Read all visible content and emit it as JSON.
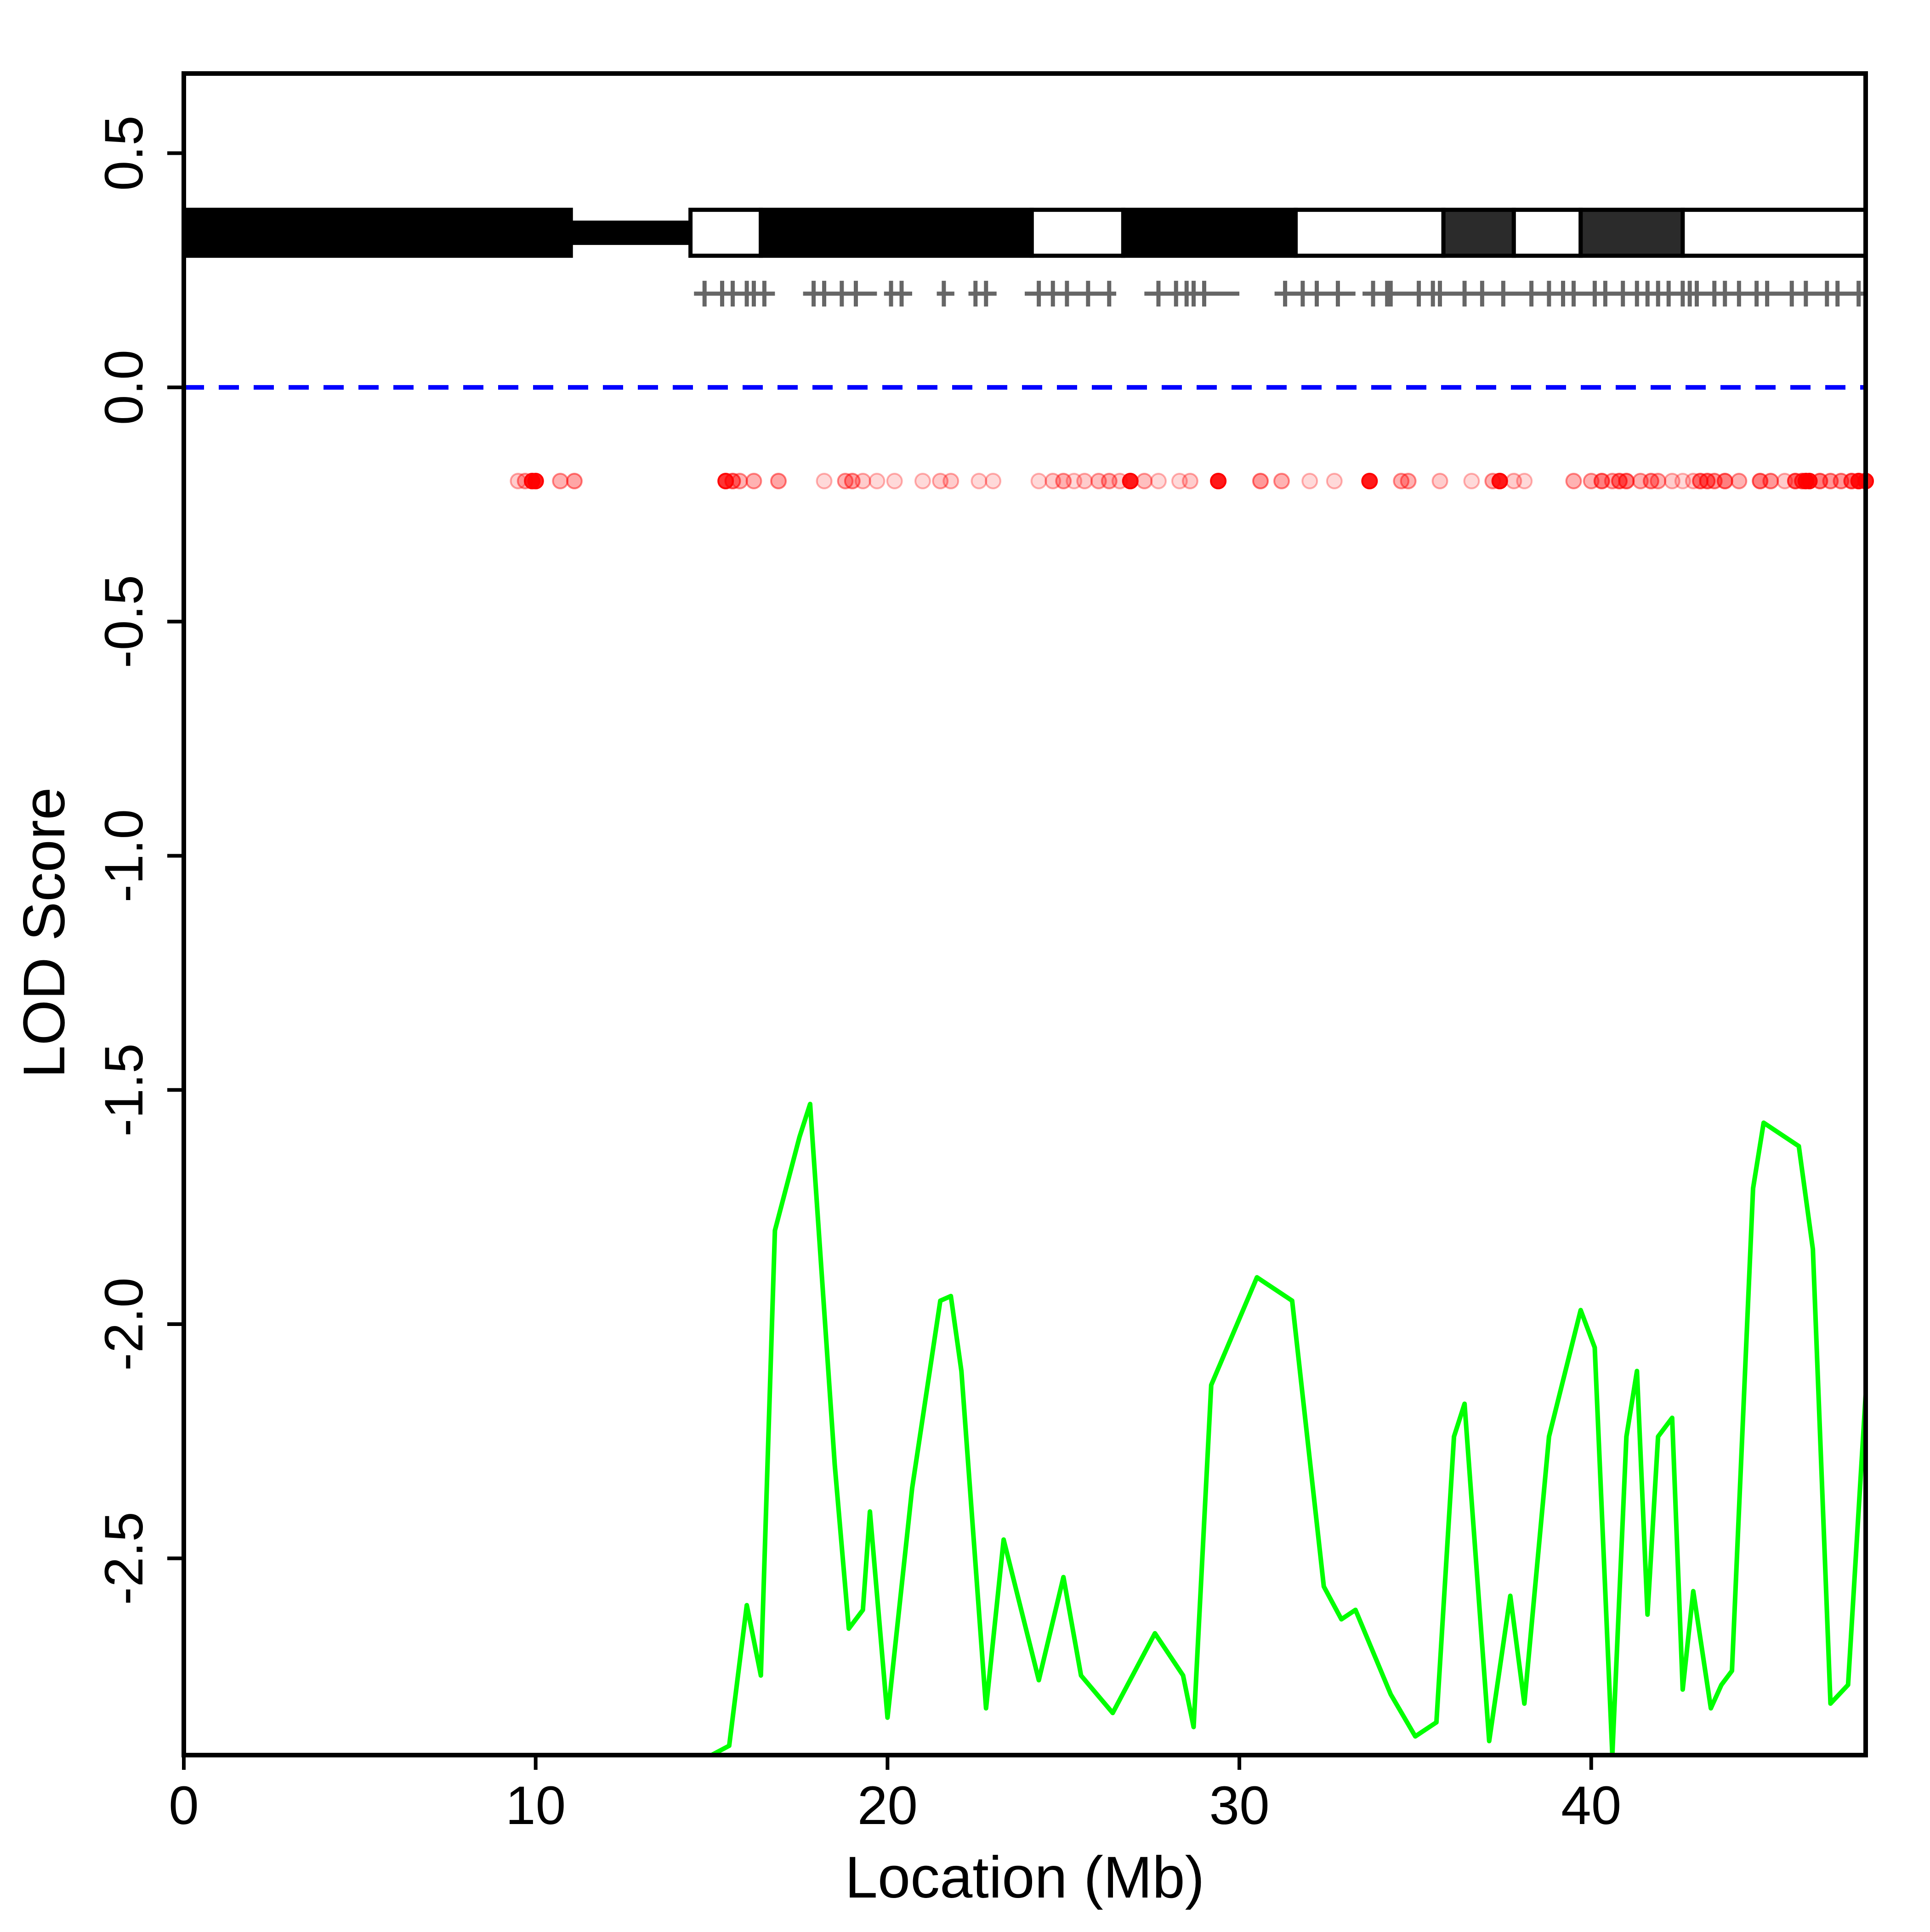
{
  "chart_data": {
    "type": "line",
    "title": "",
    "xlabel": "Location (Mb)",
    "ylabel": "LOD Score",
    "xlim": [
      0,
      47.8
    ],
    "ylim": [
      -2.92,
      0.67
    ],
    "x_ticks": [
      0,
      10,
      20,
      30,
      40
    ],
    "x_tick_labels": [
      "0",
      "10",
      "20",
      "30",
      "40"
    ],
    "y_ticks": [
      0.5,
      0.0,
      -0.5,
      -1.0,
      -1.5,
      -2.0,
      -2.5
    ],
    "y_tick_labels": [
      "0.5",
      "0.0",
      "-0.5",
      "-1.0",
      "-1.5",
      "-2.0",
      "-2.5"
    ],
    "grid": false,
    "threshold": {
      "y": 0.0,
      "color": "#0000ff",
      "style": "dashed"
    },
    "colors": {
      "lod_line": "#00ff00",
      "threshold": "#0000ff",
      "snp_points": "#ff0000",
      "markers": "#666666",
      "chrom_dark": "#000000",
      "chrom_gray": "#2b2b2b",
      "chrom_light": "#ffffff"
    },
    "chromosome_ideogram": {
      "y": 0.33,
      "bands": [
        {
          "start": 0.0,
          "end": 11.0,
          "shade": "dark",
          "part": "arm"
        },
        {
          "start": 11.0,
          "end": 14.4,
          "shade": "dark",
          "part": "centromere"
        },
        {
          "start": 14.4,
          "end": 16.4,
          "shade": "light",
          "part": "arm"
        },
        {
          "start": 16.4,
          "end": 24.1,
          "shade": "dark",
          "part": "arm"
        },
        {
          "start": 24.1,
          "end": 26.7,
          "shade": "light",
          "part": "arm"
        },
        {
          "start": 26.7,
          "end": 31.6,
          "shade": "dark",
          "part": "arm"
        },
        {
          "start": 31.6,
          "end": 35.8,
          "shade": "light",
          "part": "arm"
        },
        {
          "start": 35.8,
          "end": 37.8,
          "shade": "gray",
          "part": "arm"
        },
        {
          "start": 37.8,
          "end": 39.7,
          "shade": "light",
          "part": "arm"
        },
        {
          "start": 39.7,
          "end": 42.6,
          "shade": "gray",
          "part": "arm"
        },
        {
          "start": 42.6,
          "end": 47.8,
          "shade": "light",
          "part": "arm"
        }
      ]
    },
    "markers": {
      "y": 0.2,
      "segments": [
        [
          14.5,
          16.8
        ],
        [
          17.6,
          19.7
        ],
        [
          19.9,
          20.7
        ],
        [
          21.4,
          21.9
        ],
        [
          22.3,
          23.1
        ],
        [
          23.9,
          26.5
        ],
        [
          27.3,
          30.0
        ],
        [
          31.0,
          33.3
        ],
        [
          33.5,
          47.8
        ]
      ],
      "positions": [
        14.8,
        15.3,
        15.6,
        16.0,
        16.2,
        16.5,
        17.9,
        18.2,
        18.7,
        19.1,
        20.1,
        20.4,
        21.6,
        22.5,
        22.8,
        24.3,
        24.7,
        25.1,
        25.7,
        26.3,
        27.7,
        28.2,
        28.5,
        28.7,
        29.0,
        31.3,
        31.8,
        32.2,
        32.8,
        33.8,
        34.2,
        34.3,
        35.1,
        35.5,
        35.7,
        36.4,
        36.9,
        37.5,
        38.3,
        38.8,
        39.2,
        39.5,
        40.1,
        40.4,
        40.9,
        41.3,
        41.6,
        41.9,
        42.2,
        42.6,
        42.8,
        43.0,
        43.5,
        43.8,
        44.2,
        44.7,
        45.0,
        45.7,
        46.1,
        46.7,
        47.0,
        47.6
      ],
      "marker_shape": "plus"
    },
    "snp_points": {
      "y": -0.2,
      "points": [
        {
          "x": 9.5,
          "a": 0.2
        },
        {
          "x": 9.7,
          "a": 0.3
        },
        {
          "x": 9.9,
          "a": 0.9
        },
        {
          "x": 10.0,
          "a": 0.9
        },
        {
          "x": 10.7,
          "a": 0.3
        },
        {
          "x": 11.1,
          "a": 0.35
        },
        {
          "x": 15.4,
          "a": 0.8
        },
        {
          "x": 15.6,
          "a": 0.5
        },
        {
          "x": 15.8,
          "a": 0.3
        },
        {
          "x": 16.2,
          "a": 0.3
        },
        {
          "x": 16.9,
          "a": 0.35
        },
        {
          "x": 18.2,
          "a": 0.15
        },
        {
          "x": 18.8,
          "a": 0.3
        },
        {
          "x": 19.0,
          "a": 0.35
        },
        {
          "x": 19.3,
          "a": 0.2
        },
        {
          "x": 19.7,
          "a": 0.15
        },
        {
          "x": 20.2,
          "a": 0.15
        },
        {
          "x": 21.0,
          "a": 0.15
        },
        {
          "x": 21.5,
          "a": 0.2
        },
        {
          "x": 21.8,
          "a": 0.2
        },
        {
          "x": 22.6,
          "a": 0.15
        },
        {
          "x": 23.0,
          "a": 0.15
        },
        {
          "x": 24.3,
          "a": 0.15
        },
        {
          "x": 24.7,
          "a": 0.2
        },
        {
          "x": 25.0,
          "a": 0.3
        },
        {
          "x": 25.3,
          "a": 0.15
        },
        {
          "x": 25.6,
          "a": 0.2
        },
        {
          "x": 26.0,
          "a": 0.25
        },
        {
          "x": 26.3,
          "a": 0.3
        },
        {
          "x": 26.6,
          "a": 0.2
        },
        {
          "x": 26.9,
          "a": 0.9
        },
        {
          "x": 27.3,
          "a": 0.25
        },
        {
          "x": 27.7,
          "a": 0.15
        },
        {
          "x": 28.3,
          "a": 0.15
        },
        {
          "x": 28.6,
          "a": 0.2
        },
        {
          "x": 29.4,
          "a": 0.9
        },
        {
          "x": 30.6,
          "a": 0.4
        },
        {
          "x": 31.2,
          "a": 0.3
        },
        {
          "x": 32.0,
          "a": 0.15
        },
        {
          "x": 32.7,
          "a": 0.15
        },
        {
          "x": 33.7,
          "a": 0.9
        },
        {
          "x": 34.6,
          "a": 0.3
        },
        {
          "x": 34.8,
          "a": 0.3
        },
        {
          "x": 35.7,
          "a": 0.2
        },
        {
          "x": 36.6,
          "a": 0.15
        },
        {
          "x": 37.2,
          "a": 0.3
        },
        {
          "x": 37.4,
          "a": 0.9
        },
        {
          "x": 37.8,
          "a": 0.2
        },
        {
          "x": 38.1,
          "a": 0.15
        },
        {
          "x": 39.5,
          "a": 0.3
        },
        {
          "x": 40.0,
          "a": 0.3
        },
        {
          "x": 40.3,
          "a": 0.5
        },
        {
          "x": 40.6,
          "a": 0.3
        },
        {
          "x": 40.8,
          "a": 0.5
        },
        {
          "x": 41.0,
          "a": 0.5
        },
        {
          "x": 41.4,
          "a": 0.3
        },
        {
          "x": 41.7,
          "a": 0.4
        },
        {
          "x": 41.9,
          "a": 0.3
        },
        {
          "x": 42.3,
          "a": 0.2
        },
        {
          "x": 42.6,
          "a": 0.15
        },
        {
          "x": 42.9,
          "a": 0.2
        },
        {
          "x": 43.1,
          "a": 0.5
        },
        {
          "x": 43.3,
          "a": 0.5
        },
        {
          "x": 43.5,
          "a": 0.4
        },
        {
          "x": 43.8,
          "a": 0.5
        },
        {
          "x": 44.2,
          "a": 0.3
        },
        {
          "x": 44.8,
          "a": 0.5
        },
        {
          "x": 45.1,
          "a": 0.4
        },
        {
          "x": 45.5,
          "a": 0.2
        },
        {
          "x": 45.8,
          "a": 0.6
        },
        {
          "x": 46.0,
          "a": 0.6
        },
        {
          "x": 46.1,
          "a": 0.9
        },
        {
          "x": 46.2,
          "a": 0.9
        },
        {
          "x": 46.5,
          "a": 0.5
        },
        {
          "x": 46.8,
          "a": 0.4
        },
        {
          "x": 47.1,
          "a": 0.4
        },
        {
          "x": 47.4,
          "a": 0.6
        },
        {
          "x": 47.6,
          "a": 0.9
        },
        {
          "x": 47.8,
          "a": 0.9
        }
      ]
    },
    "series": [
      {
        "x": [
          0.0,
          15.0,
          15.5,
          16.0,
          16.4,
          16.8,
          17.5,
          17.8,
          18.5,
          18.9,
          19.3,
          19.5,
          20.0,
          20.7,
          21.5,
          21.8,
          22.1,
          22.8,
          23.3,
          24.3,
          25.0,
          25.5,
          26.4,
          27.6,
          28.4,
          28.7,
          29.2,
          30.5,
          31.5,
          32.4,
          32.9,
          33.3,
          34.3,
          35.0,
          35.6,
          36.1,
          36.4,
          37.1,
          37.7,
          38.1,
          38.8,
          39.7,
          40.1,
          40.6,
          41.0,
          41.3,
          41.6,
          41.9,
          42.3,
          42.6,
          42.9,
          43.4,
          43.7,
          44.0,
          44.6,
          44.9,
          45.9,
          46.3,
          46.8,
          47.3,
          47.8
        ],
        "y": [
          -2.92,
          -2.92,
          -2.9,
          -2.6,
          -2.75,
          -1.8,
          -1.6,
          -1.53,
          -2.3,
          -2.65,
          -2.61,
          -2.4,
          -2.84,
          -2.35,
          -1.95,
          -1.94,
          -2.1,
          -2.82,
          -2.46,
          -2.76,
          -2.54,
          -2.75,
          -2.83,
          -2.66,
          -2.75,
          -2.86,
          -2.13,
          -1.9,
          -1.95,
          -2.56,
          -2.63,
          -2.61,
          -2.79,
          -2.88,
          -2.85,
          -2.24,
          -2.17,
          -2.89,
          -2.58,
          -2.81,
          -2.24,
          -1.97,
          -2.05,
          -2.92,
          -2.24,
          -2.1,
          -2.62,
          -2.24,
          -2.2,
          -2.78,
          -2.57,
          -2.82,
          -2.77,
          -2.74,
          -1.71,
          -1.57,
          -1.62,
          -1.84,
          -2.81,
          -2.77,
          -2.15
        ]
      }
    ]
  }
}
